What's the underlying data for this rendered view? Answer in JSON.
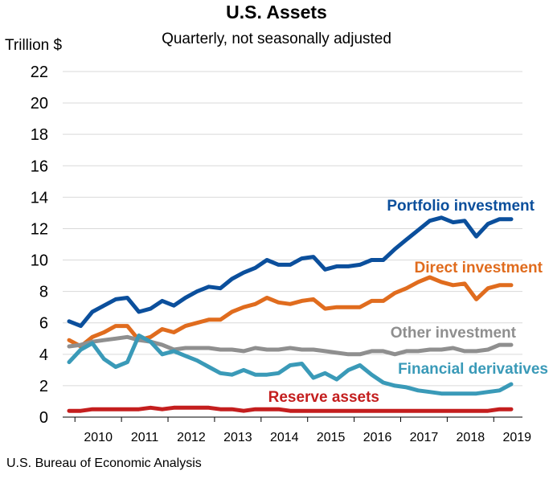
{
  "chart_data": {
    "type": "line",
    "title": "U.S. Assets",
    "subtitle": "Quarterly, not seasonally adjusted",
    "ylabel": "Trillion $",
    "source": "U.S. Bureau of Economic Analysis",
    "ylim": [
      0,
      22
    ],
    "yticks": [
      0,
      2,
      4,
      6,
      8,
      10,
      12,
      14,
      16,
      18,
      20,
      22
    ],
    "xticks": [
      "2010",
      "2011",
      "2012",
      "2013",
      "2014",
      "2015",
      "2016",
      "2017",
      "2018",
      "2019"
    ],
    "grid": true,
    "legend": "inline labels",
    "x": [
      "2009Q4",
      "2010Q1",
      "2010Q2",
      "2010Q3",
      "2010Q4",
      "2011Q1",
      "2011Q2",
      "2011Q3",
      "2011Q4",
      "2012Q1",
      "2012Q2",
      "2012Q3",
      "2012Q4",
      "2013Q1",
      "2013Q2",
      "2013Q3",
      "2013Q4",
      "2014Q1",
      "2014Q2",
      "2014Q3",
      "2014Q4",
      "2015Q1",
      "2015Q2",
      "2015Q3",
      "2015Q4",
      "2016Q1",
      "2016Q2",
      "2016Q3",
      "2016Q4",
      "2017Q1",
      "2017Q2",
      "2017Q3",
      "2017Q4",
      "2018Q1",
      "2018Q2",
      "2018Q3",
      "2018Q4",
      "2019Q1",
      "2019Q2"
    ],
    "series": [
      {
        "name": "Portfolio investment",
        "color": "#0b4f9c",
        "values": [
          6.1,
          5.8,
          6.7,
          7.1,
          7.5,
          7.6,
          6.7,
          6.9,
          7.4,
          7.1,
          7.6,
          8.0,
          8.3,
          8.2,
          8.8,
          9.2,
          9.5,
          10.0,
          9.7,
          9.7,
          10.1,
          10.2,
          9.4,
          9.6,
          9.6,
          9.7,
          10.0,
          10.0,
          10.7,
          11.3,
          11.9,
          12.5,
          12.7,
          12.4,
          12.5,
          11.5,
          12.3,
          12.6,
          12.6
        ]
      },
      {
        "name": "Direct investment",
        "color": "#e06c1e",
        "values": [
          4.9,
          4.5,
          5.1,
          5.4,
          5.8,
          5.8,
          4.9,
          5.1,
          5.6,
          5.4,
          5.8,
          6.0,
          6.2,
          6.2,
          6.7,
          7.0,
          7.2,
          7.6,
          7.3,
          7.2,
          7.4,
          7.5,
          6.9,
          7.0,
          7.0,
          7.0,
          7.4,
          7.4,
          7.9,
          8.2,
          8.6,
          8.9,
          8.6,
          8.4,
          8.5,
          7.5,
          8.2,
          8.4,
          8.4
        ]
      },
      {
        "name": "Other investment",
        "color": "#8f8f8f",
        "values": [
          4.5,
          4.6,
          4.8,
          4.9,
          5.0,
          5.1,
          4.9,
          4.8,
          4.6,
          4.3,
          4.4,
          4.4,
          4.4,
          4.3,
          4.3,
          4.2,
          4.4,
          4.3,
          4.3,
          4.4,
          4.3,
          4.3,
          4.2,
          4.1,
          4.0,
          4.0,
          4.2,
          4.2,
          4.0,
          4.2,
          4.2,
          4.3,
          4.3,
          4.4,
          4.2,
          4.2,
          4.3,
          4.6,
          4.6
        ]
      },
      {
        "name": "Financial derivatives",
        "color": "#3a9ab8",
        "values": [
          3.5,
          4.3,
          4.7,
          3.7,
          3.2,
          3.5,
          5.2,
          4.8,
          4.0,
          4.2,
          3.9,
          3.6,
          3.2,
          2.8,
          2.7,
          3.0,
          2.7,
          2.7,
          2.8,
          3.3,
          3.4,
          2.5,
          2.8,
          2.4,
          3.0,
          3.3,
          2.7,
          2.2,
          2.0,
          1.9,
          1.7,
          1.6,
          1.5,
          1.5,
          1.5,
          1.5,
          1.6,
          1.7,
          2.1
        ]
      },
      {
        "name": "Reserve assets",
        "color": "#c41e1e",
        "values": [
          0.4,
          0.4,
          0.5,
          0.5,
          0.5,
          0.5,
          0.5,
          0.6,
          0.5,
          0.6,
          0.6,
          0.6,
          0.6,
          0.5,
          0.5,
          0.4,
          0.5,
          0.5,
          0.5,
          0.4,
          0.4,
          0.4,
          0.4,
          0.4,
          0.4,
          0.4,
          0.4,
          0.4,
          0.4,
          0.4,
          0.4,
          0.4,
          0.4,
          0.4,
          0.4,
          0.4,
          0.4,
          0.5,
          0.5
        ]
      }
    ]
  }
}
